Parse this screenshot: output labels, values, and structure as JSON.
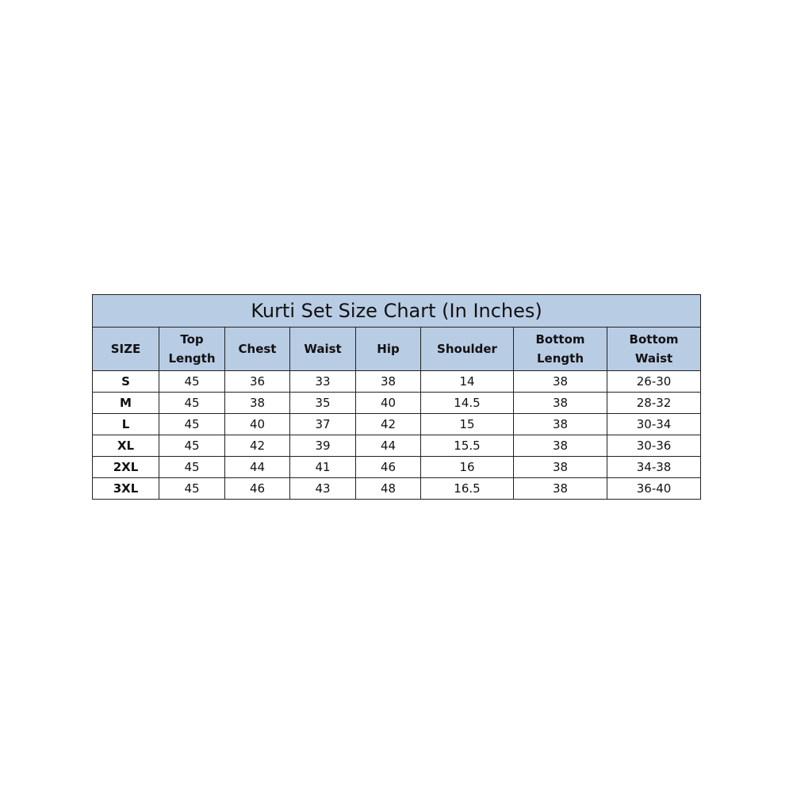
{
  "title": "Kurti Set Size Chart (In Inches)",
  "colors": {
    "header_bg": "#b8cce4",
    "border": "#222222"
  },
  "headers": [
    [
      "SIZE"
    ],
    [
      "Top",
      "Length"
    ],
    [
      "Chest"
    ],
    [
      "Waist"
    ],
    [
      "Hip"
    ],
    [
      "Shoulder"
    ],
    [
      "Bottom",
      "Length"
    ],
    [
      "Bottom",
      "Waist"
    ]
  ],
  "rows": [
    [
      "S",
      "45",
      "36",
      "33",
      "38",
      "14",
      "38",
      "26-30"
    ],
    [
      "M",
      "45",
      "38",
      "35",
      "40",
      "14.5",
      "38",
      "28-32"
    ],
    [
      "L",
      "45",
      "40",
      "37",
      "42",
      "15",
      "38",
      "30-34"
    ],
    [
      "XL",
      "45",
      "42",
      "39",
      "44",
      "15.5",
      "38",
      "30-36"
    ],
    [
      "2XL",
      "45",
      "44",
      "41",
      "46",
      "16",
      "38",
      "34-38"
    ],
    [
      "3XL",
      "45",
      "46",
      "43",
      "48",
      "16.5",
      "38",
      "36-40"
    ]
  ]
}
